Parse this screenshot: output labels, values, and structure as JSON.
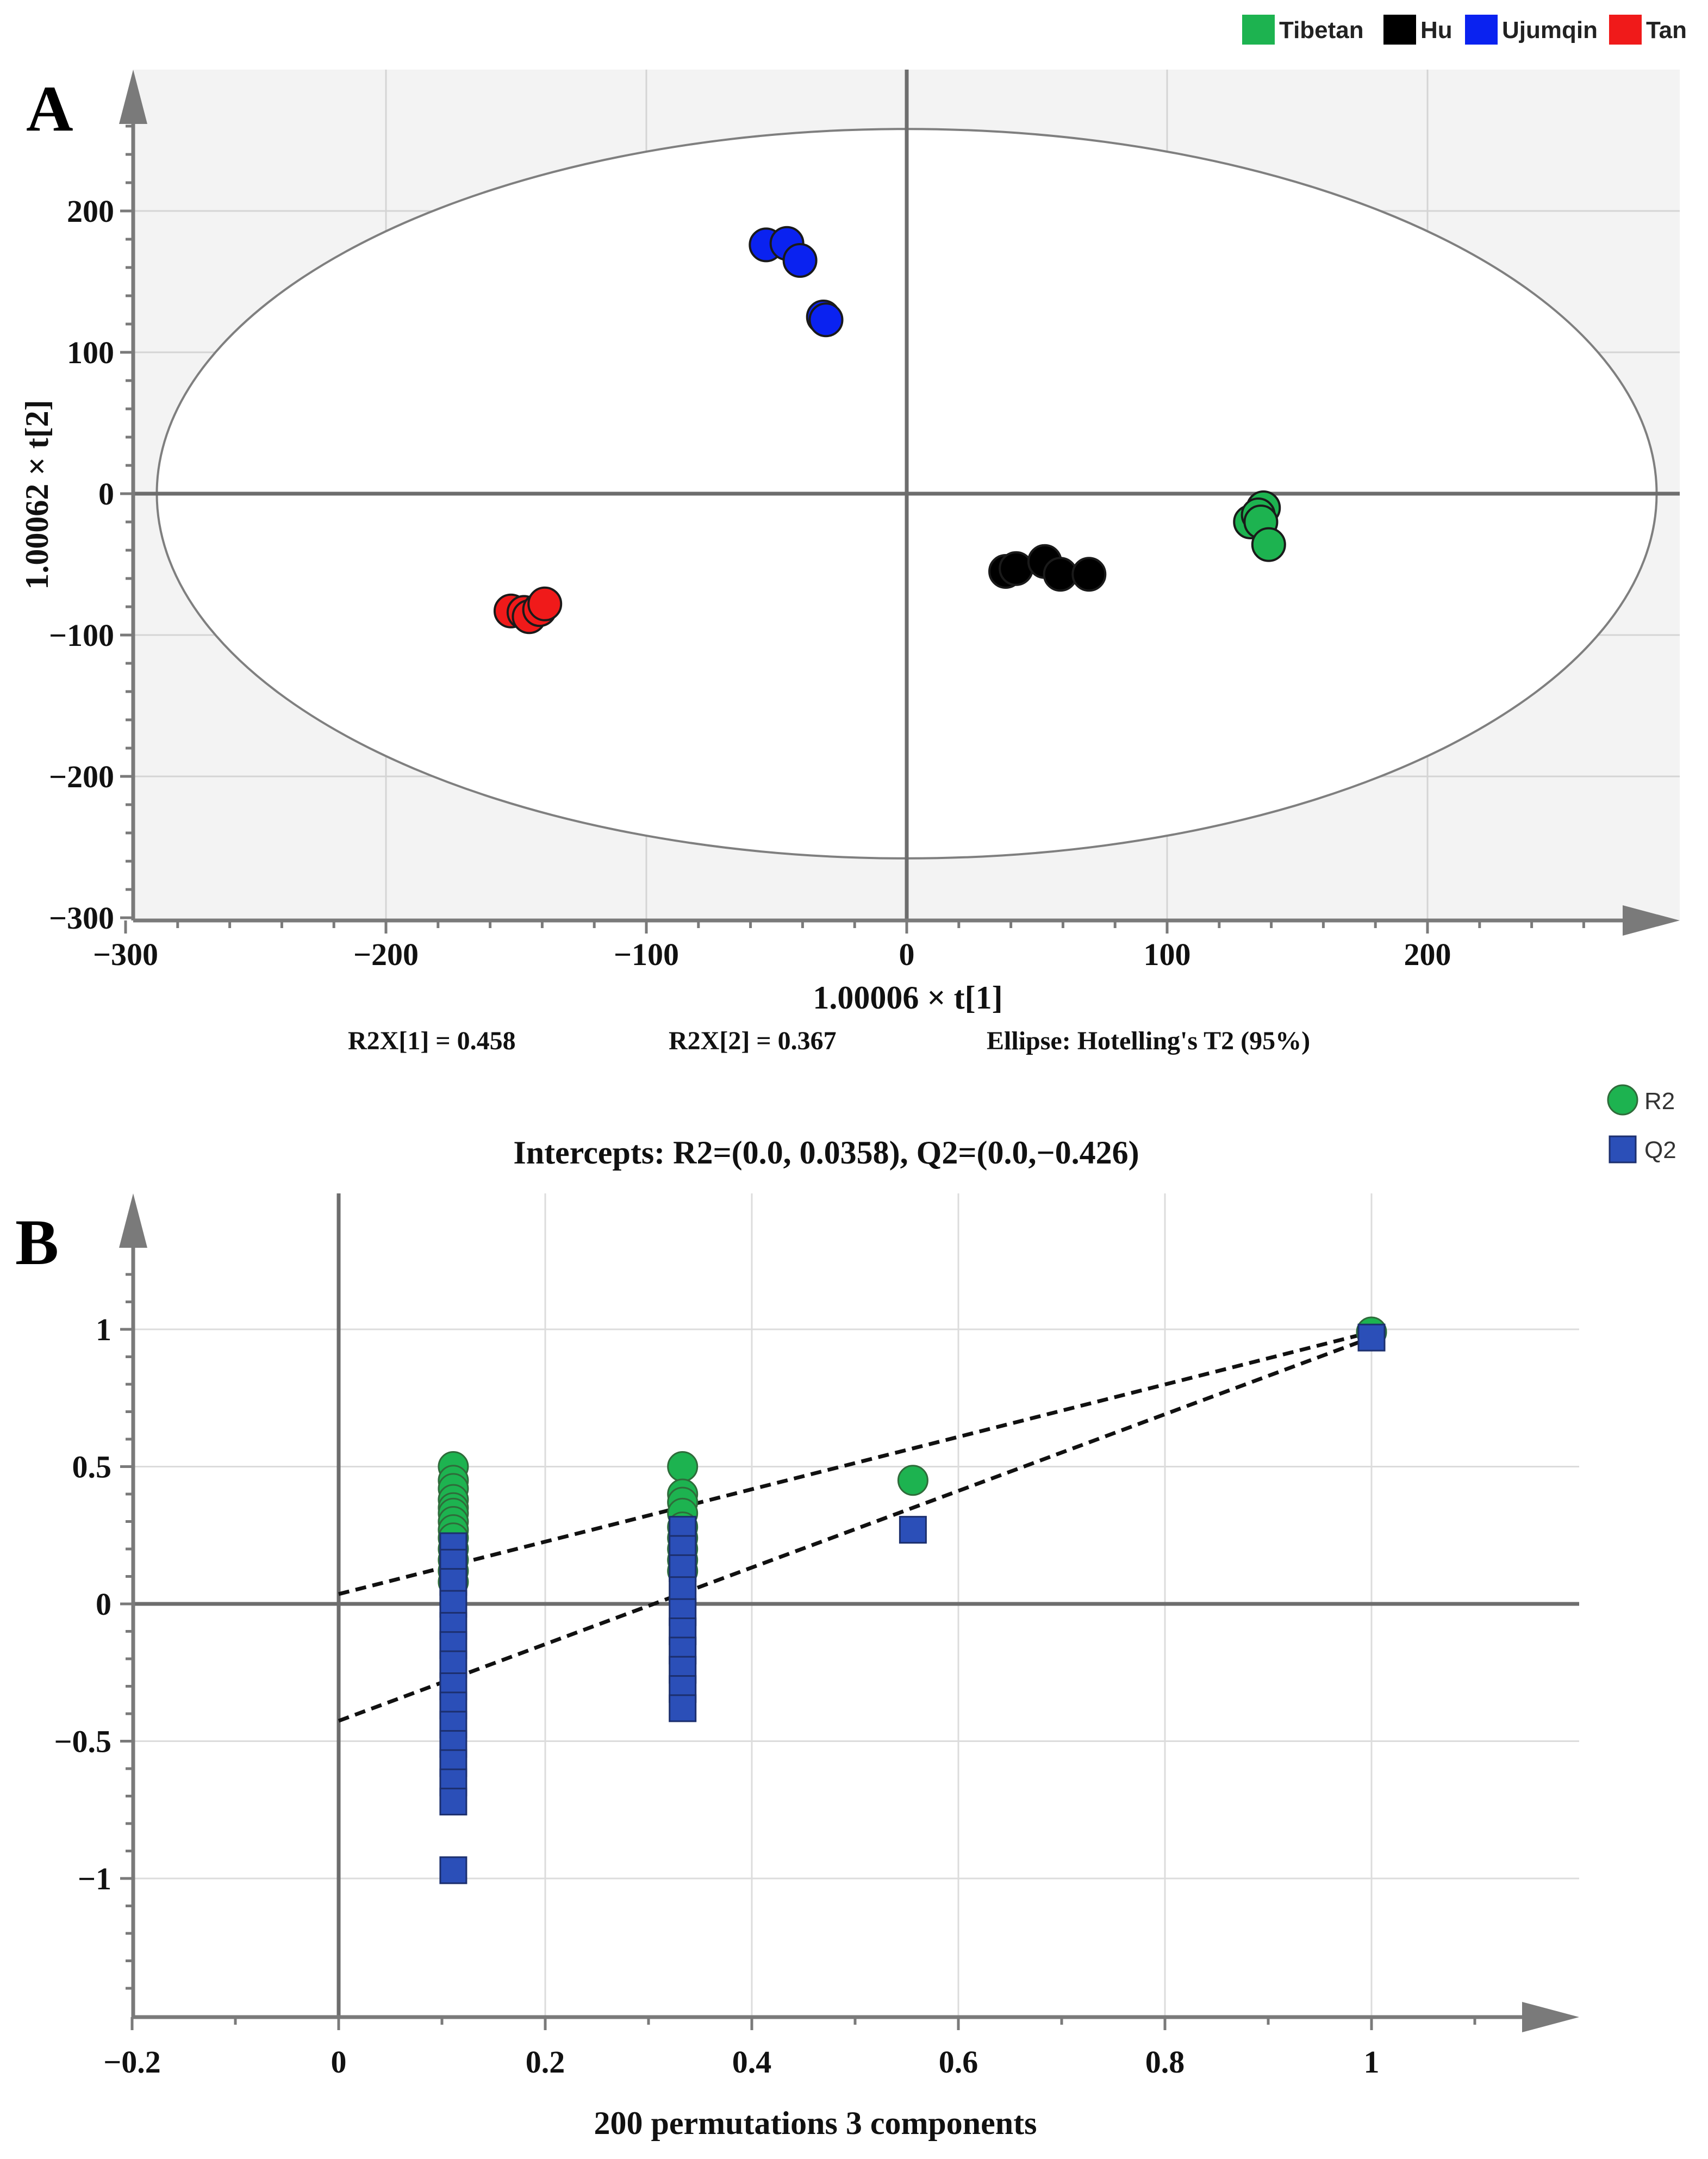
{
  "chart_data": [
    {
      "panel": "A",
      "type": "scatter",
      "xlabel": "1.00006 × t[1]",
      "ylabel": "1.00062 × t[2]",
      "xlim": [
        -300,
        300
      ],
      "ylim": [
        -300,
        300
      ],
      "xticks": [
        -300,
        -200,
        -100,
        0,
        100,
        200
      ],
      "yticks": [
        -300,
        -200,
        -100,
        0,
        100,
        200
      ],
      "xtick_labels": [
        "−300",
        "−200",
        "−100",
        "0",
        "100",
        "200"
      ],
      "ytick_labels": [
        "−300",
        "−200",
        "−100",
        "0",
        "100",
        "200"
      ],
      "ellipse": {
        "label": "Hotelling's T2 (95%)",
        "rx": 288,
        "ry": 258
      },
      "legend": [
        "Tibetan",
        "Hu",
        "Ujumqin",
        "Tan"
      ],
      "series": [
        {
          "name": "Tibetan",
          "color": "#1db350",
          "points": [
            [
              137,
              -10
            ],
            [
              132,
              -20
            ],
            [
              135,
              -15
            ],
            [
              136,
              -20
            ],
            [
              139,
              -36
            ]
          ]
        },
        {
          "name": "Hu",
          "color": "#000000",
          "points": [
            [
              38,
              -55
            ],
            [
              42,
              -53
            ],
            [
              53,
              -48
            ],
            [
              59,
              -57
            ],
            [
              70,
              -57
            ]
          ]
        },
        {
          "name": "Ujumqin",
          "color": "#0a22f0",
          "points": [
            [
              -54,
              176
            ],
            [
              -46,
              177
            ],
            [
              -41,
              165
            ],
            [
              -32,
              125
            ],
            [
              -31,
              123
            ]
          ]
        },
        {
          "name": "Tan",
          "color": "#f01a1a",
          "points": [
            [
              -152,
              -83
            ],
            [
              -147,
              -84
            ],
            [
              -145,
              -87
            ],
            [
              -141,
              -82
            ],
            [
              -139,
              -78
            ]
          ]
        }
      ],
      "annotations": [
        "R2X[1] = 0.458",
        "R2X[2] = 0.367",
        "Ellipse: Hotelling's T2 (95%)"
      ]
    },
    {
      "panel": "B",
      "type": "scatter",
      "title": "Intercepts: R2=(0.0, 0.0358), Q2=(0.0,−0.426)",
      "xlabel": "200 permutations 3 components",
      "ylabel": "",
      "xlim": [
        -0.2,
        1.2
      ],
      "ylim": [
        -1.5,
        1.5
      ],
      "xticks": [
        -0.2,
        0,
        0.2,
        0.4,
        0.6,
        0.8,
        1
      ],
      "yticks": [
        -1,
        -0.5,
        0,
        0.5,
        1
      ],
      "xtick_labels": [
        "−0.2",
        "0",
        "0.2",
        "0.4",
        "0.6",
        "0.8",
        "1"
      ],
      "ytick_labels": [
        "−1",
        "−0.5",
        "0",
        "0.5",
        "1"
      ],
      "legend": [
        "R2",
        "Q2"
      ],
      "series": [
        {
          "name": "R2",
          "marker": "circle",
          "color": "#1db350",
          "points": [
            [
              0.111,
              0.5
            ],
            [
              0.111,
              0.45
            ],
            [
              0.111,
              0.42
            ],
            [
              0.111,
              0.38
            ],
            [
              0.111,
              0.35
            ],
            [
              0.111,
              0.33
            ],
            [
              0.111,
              0.3
            ],
            [
              0.111,
              0.27
            ],
            [
              0.111,
              0.24
            ],
            [
              0.111,
              0.2
            ],
            [
              0.111,
              0.16
            ],
            [
              0.111,
              0.12
            ],
            [
              0.111,
              0.08
            ],
            [
              0.333,
              0.5
            ],
            [
              0.333,
              0.4
            ],
            [
              0.333,
              0.37
            ],
            [
              0.333,
              0.33
            ],
            [
              0.333,
              0.28
            ],
            [
              0.333,
              0.24
            ],
            [
              0.333,
              0.2
            ],
            [
              0.333,
              0.16
            ],
            [
              0.333,
              0.12
            ],
            [
              0.556,
              0.45
            ],
            [
              1.0,
              0.99
            ]
          ]
        },
        {
          "name": "Q2",
          "marker": "square",
          "color": "#2b4fb8",
          "points": [
            [
              0.111,
              0.21
            ],
            [
              0.111,
              0.15
            ],
            [
              0.111,
              0.08
            ],
            [
              0.111,
              0.0
            ],
            [
              0.111,
              -0.08
            ],
            [
              0.111,
              -0.15
            ],
            [
              0.111,
              -0.22
            ],
            [
              0.111,
              -0.3
            ],
            [
              0.111,
              -0.37
            ],
            [
              0.111,
              -0.44
            ],
            [
              0.111,
              -0.51
            ],
            [
              0.111,
              -0.58
            ],
            [
              0.111,
              -0.65
            ],
            [
              0.111,
              -0.72
            ],
            [
              0.111,
              -0.97
            ],
            [
              0.333,
              0.27
            ],
            [
              0.333,
              0.2
            ],
            [
              0.333,
              0.13
            ],
            [
              0.333,
              0.05
            ],
            [
              0.333,
              -0.03
            ],
            [
              0.333,
              -0.1
            ],
            [
              0.333,
              -0.17
            ],
            [
              0.333,
              -0.24
            ],
            [
              0.333,
              -0.31
            ],
            [
              0.333,
              -0.38
            ],
            [
              0.556,
              0.27
            ],
            [
              1.0,
              0.97
            ]
          ]
        }
      ],
      "regression_lines": [
        {
          "name": "R2",
          "intercept": 0.0358,
          "end": [
            1.0,
            0.99
          ]
        },
        {
          "name": "Q2",
          "intercept": -0.426,
          "end": [
            1.0,
            0.97
          ]
        }
      ]
    }
  ]
}
